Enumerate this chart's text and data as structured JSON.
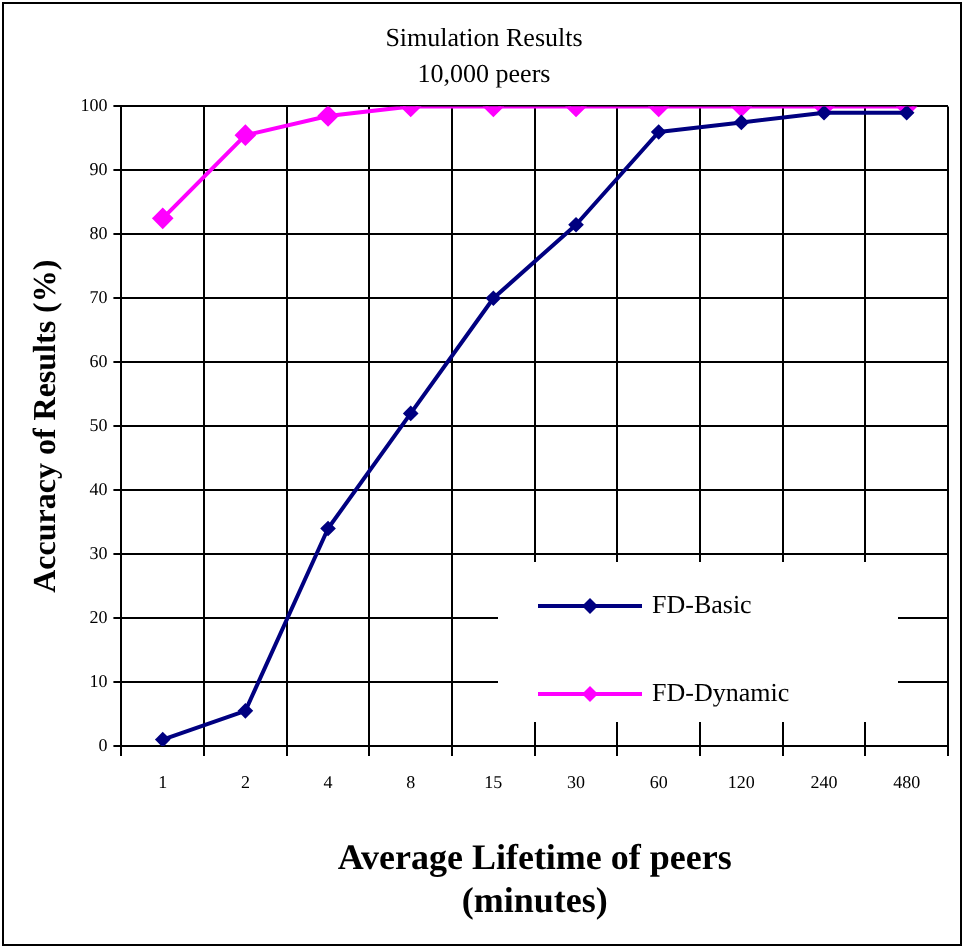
{
  "chart_data": {
    "type": "line",
    "title": "Simulation Results",
    "subtitle": "10,000 peers",
    "xlabel": "Average Lifetime of peers (minutes)",
    "ylabel": "Accuracy of Results (%)",
    "categories": [
      "1",
      "2",
      "4",
      "8",
      "15",
      "30",
      "60",
      "120",
      "240",
      "480"
    ],
    "series": [
      {
        "name": "FD-Basic",
        "color": "#000080",
        "values": [
          1,
          5.5,
          34,
          52,
          70,
          81.5,
          96,
          97.5,
          99,
          99
        ]
      },
      {
        "name": "FD-Dynamic",
        "color": "#ff00ff",
        "values": [
          82.5,
          95.5,
          98.5,
          100,
          100,
          100,
          100,
          100,
          100,
          100
        ]
      }
    ],
    "ylim": [
      0,
      100
    ],
    "yticks": [
      0,
      10,
      20,
      30,
      40,
      50,
      60,
      70,
      80,
      90,
      100
    ],
    "grid": true,
    "legend": "bottom right",
    "marker": "diamond",
    "line_style": "solid"
  }
}
